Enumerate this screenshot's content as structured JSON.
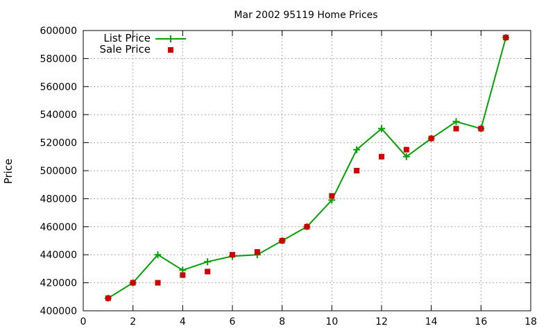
{
  "chart_data": {
    "type": "line",
    "title": "Mar 2002 95119 Home Prices",
    "xlabel": "",
    "ylabel": "Price",
    "xlim": [
      0,
      18
    ],
    "ylim": [
      400000,
      600000
    ],
    "xticks": [
      0,
      2,
      4,
      6,
      8,
      10,
      12,
      14,
      16,
      18
    ],
    "yticks": [
      400000,
      420000,
      440000,
      460000,
      480000,
      500000,
      520000,
      540000,
      560000,
      580000,
      600000
    ],
    "grid": true,
    "legend_position": "top-left",
    "series": [
      {
        "name": "List Price",
        "style": "line-with-plus-markers",
        "color": "#00a000",
        "x": [
          1,
          2,
          3,
          4,
          5,
          6,
          7,
          8,
          9,
          10,
          11,
          12,
          13,
          14,
          15,
          16,
          17
        ],
        "values": [
          409000,
          420000,
          440000,
          429000,
          435000,
          439000,
          440000,
          450000,
          460000,
          479000,
          515000,
          530000,
          510000,
          523000,
          535000,
          530000,
          595000
        ]
      },
      {
        "name": "Sale Price",
        "style": "square-markers",
        "color": "#cc0000",
        "x": [
          1,
          2,
          3,
          4,
          5,
          6,
          7,
          8,
          9,
          10,
          11,
          12,
          13,
          14,
          15,
          16,
          17
        ],
        "values": [
          409000,
          420000,
          420000,
          425500,
          428000,
          440000,
          442000,
          450000,
          460000,
          482000,
          500000,
          510000,
          515000,
          523000,
          530000,
          530000,
          595000
        ]
      }
    ]
  }
}
